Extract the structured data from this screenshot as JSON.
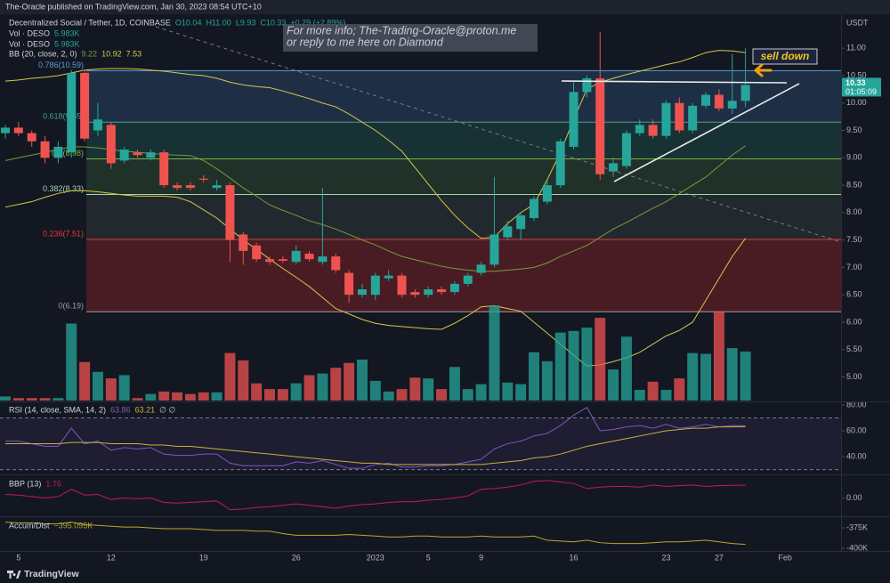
{
  "header": {
    "publisher": "The-Oracle published on TradingView.com, Jan 30, 2023 08:54 UTC+10"
  },
  "footer": {
    "brand": "TradingView"
  },
  "annotations": {
    "info": [
      "For more info; The-Trading-Oracle@proton.me",
      "or reply to me here on Diamond"
    ],
    "callout": "sell down"
  },
  "chart_data": [
    {
      "type": "candlestick",
      "title": "Decentralized Social / Tether, 1D, COINBASE",
      "ohlc_labels": [
        "O10.04",
        "H11.00",
        "L9.93",
        "C10.33",
        "+0.29 (+2.89%)"
      ],
      "unit": "USDT",
      "categories": [
        null,
        "5",
        null,
        null,
        null,
        null,
        null,
        null,
        "12",
        null,
        null,
        null,
        null,
        null,
        null,
        "19",
        null,
        null,
        null,
        null,
        null,
        null,
        "26",
        null,
        null,
        null,
        null,
        null,
        "2023",
        null,
        null,
        null,
        "5",
        null,
        null,
        null,
        "9",
        null,
        null,
        null,
        null,
        null,
        null,
        "16",
        null,
        null,
        null,
        null,
        null,
        null,
        "23",
        null,
        null,
        null,
        "27",
        null,
        null,
        null,
        null,
        "Feb"
      ],
      "open": [
        9.45,
        9.55,
        9.45,
        9.3,
        9.0,
        9.1,
        10.55,
        9.5,
        9.6,
        8.95,
        9.1,
        9.0,
        9.1,
        8.5,
        8.5,
        8.62,
        8.45,
        8.5,
        7.6,
        7.4,
        7.15,
        7.15,
        7.1,
        7.25,
        7.1,
        7.2,
        6.9,
        6.5,
        6.5,
        6.8,
        6.85,
        6.55,
        6.5,
        6.6,
        6.55,
        6.7,
        6.9,
        7.05,
        7.55,
        7.7,
        7.9,
        8.2,
        8.5,
        9.2,
        10.2,
        10.45,
        8.75,
        8.85,
        9.45,
        9.6,
        9.4,
        10.0,
        9.5,
        9.95,
        10.15,
        9.9,
        10.04,
        null,
        null,
        null
      ],
      "high": [
        9.6,
        9.65,
        9.5,
        9.4,
        9.3,
        10.6,
        10.6,
        10.0,
        9.65,
        9.2,
        9.15,
        9.15,
        9.15,
        8.55,
        8.55,
        8.68,
        8.6,
        8.55,
        7.65,
        7.45,
        7.2,
        7.2,
        7.4,
        7.3,
        8.45,
        7.25,
        6.95,
        6.7,
        6.9,
        6.95,
        6.9,
        6.6,
        6.65,
        6.65,
        6.75,
        6.9,
        7.1,
        8.65,
        7.85,
        8.0,
        8.3,
        8.6,
        9.35,
        10.4,
        10.5,
        11.3,
        9.0,
        9.5,
        9.7,
        9.7,
        10.05,
        10.1,
        10.0,
        10.2,
        10.25,
        10.9,
        11.0,
        null,
        null,
        null
      ],
      "low": [
        9.35,
        9.4,
        9.2,
        8.9,
        8.9,
        9.0,
        9.3,
        9.4,
        8.8,
        8.9,
        9.0,
        8.95,
        8.45,
        8.4,
        8.4,
        8.55,
        8.4,
        7.1,
        7.05,
        7.1,
        7.05,
        7.08,
        7.05,
        7.1,
        7.05,
        6.9,
        6.35,
        6.45,
        6.4,
        6.75,
        6.45,
        6.45,
        6.45,
        6.5,
        6.5,
        6.65,
        6.85,
        7.0,
        7.5,
        7.5,
        7.85,
        8.15,
        8.45,
        9.15,
        10.1,
        8.6,
        8.65,
        8.8,
        9.4,
        9.35,
        9.35,
        9.45,
        9.45,
        9.9,
        9.85,
        9.8,
        9.93,
        null,
        null,
        null
      ],
      "close": [
        9.55,
        9.45,
        9.3,
        9.0,
        9.2,
        10.55,
        9.35,
        9.7,
        8.9,
        9.15,
        9.05,
        9.1,
        8.5,
        8.45,
        8.45,
        8.6,
        8.5,
        7.5,
        7.3,
        7.15,
        7.1,
        7.12,
        7.3,
        7.15,
        7.2,
        6.95,
        6.5,
        6.6,
        6.85,
        6.85,
        6.5,
        6.5,
        6.6,
        6.55,
        6.7,
        6.85,
        7.05,
        7.6,
        7.75,
        7.95,
        8.25,
        8.5,
        9.3,
        10.2,
        10.45,
        8.7,
        8.9,
        9.45,
        9.6,
        9.4,
        10.0,
        9.5,
        9.95,
        10.15,
        9.9,
        10.04,
        10.33,
        null,
        null,
        null
      ],
      "up_color": "#26a69a",
      "down_color": "#ef5350",
      "volume": {
        "name": "Vol · DESO",
        "value_label": "5.983K",
        "values": [
          500,
          300,
          300,
          300,
          300,
          9400,
          4700,
          3500,
          2700,
          3100,
          300,
          800,
          1100,
          1000,
          800,
          1000,
          1000,
          5800,
          4900,
          2100,
          1400,
          1400,
          2100,
          3100,
          3300,
          4000,
          4600,
          5000,
          2400,
          1100,
          1400,
          2800,
          2700,
          1400,
          4100,
          1400,
          2000,
          11600,
          2200,
          2000,
          5900,
          4800,
          8300,
          8500,
          8900,
          10100,
          3800,
          7800,
          1300,
          2300,
          1300,
          2700,
          5800,
          5700,
          10900,
          6400,
          5983,
          null,
          null,
          null
        ]
      },
      "extra_legends": [
        {
          "name": "Vol · DESO",
          "value_label": "5.983K"
        }
      ],
      "bb": {
        "title": "BB (20, close, 2, 0)",
        "basis": {
          "color": "#7a9a3a",
          "value_label": "9.22",
          "values": [
            8.95,
            9.0,
            9.05,
            9.1,
            9.15,
            9.2,
            9.2,
            9.18,
            9.15,
            9.12,
            9.1,
            9.08,
            9.06,
            9.05,
            9.04,
            8.95,
            8.8,
            8.63,
            8.45,
            8.3,
            8.14,
            8.04,
            7.95,
            7.85,
            7.78,
            7.7,
            7.6,
            7.5,
            7.41,
            7.3,
            7.2,
            7.14,
            7.08,
            7.02,
            6.98,
            6.95,
            6.93,
            6.93,
            6.95,
            6.97,
            7.0,
            7.08,
            7.2,
            7.3,
            7.4,
            7.55,
            7.7,
            7.82,
            7.95,
            8.08,
            8.2,
            8.35,
            8.5,
            8.65,
            8.85,
            9.05,
            9.22,
            null,
            null,
            null
          ]
        },
        "upper": {
          "color": "#d4c84a",
          "value_label": "10.92",
          "values": [
            10.4,
            10.42,
            10.45,
            10.47,
            10.5,
            10.55,
            10.6,
            10.62,
            10.63,
            10.63,
            10.62,
            10.6,
            10.58,
            10.55,
            10.52,
            10.5,
            10.45,
            10.38,
            10.33,
            10.3,
            10.28,
            10.22,
            10.15,
            10.08,
            10.0,
            9.93,
            9.8,
            9.65,
            9.5,
            9.32,
            9.12,
            8.82,
            8.52,
            8.22,
            7.95,
            7.72,
            7.53,
            7.55,
            7.8,
            8.0,
            8.15,
            8.6,
            9.1,
            9.7,
            10.25,
            10.38,
            10.45,
            10.52,
            10.58,
            10.64,
            10.7,
            10.75,
            10.83,
            10.92,
            10.96,
            10.95,
            10.92,
            null,
            null,
            null
          ]
        },
        "lower": {
          "color": "#d4c84a",
          "value_label": "7.53",
          "values": [
            8.1,
            8.15,
            8.2,
            8.28,
            8.35,
            8.4,
            8.4,
            8.38,
            8.35,
            8.32,
            8.3,
            8.3,
            8.3,
            8.28,
            8.2,
            8.05,
            7.9,
            7.7,
            7.5,
            7.33,
            7.15,
            6.98,
            6.82,
            6.65,
            6.45,
            6.25,
            6.15,
            6.05,
            5.98,
            5.94,
            5.92,
            5.9,
            5.88,
            5.87,
            5.98,
            6.12,
            6.28,
            6.3,
            6.25,
            6.2,
            6.0,
            5.8,
            5.6,
            5.4,
            5.2,
            5.22,
            5.28,
            5.35,
            5.45,
            5.6,
            5.75,
            5.85,
            6.0,
            6.4,
            6.8,
            7.2,
            7.53,
            null,
            null,
            null
          ]
        }
      },
      "fib_levels": [
        {
          "value": 10.59,
          "label": "0.786(10.59)",
          "color": "#5b9bd5",
          "fill": "rgba(60,110,160,0.28)"
        },
        {
          "value": 9.65,
          "label": "0.618(9.65)",
          "color": "#4a9f8f",
          "fill": "rgba(40,120,105,0.28)"
        },
        {
          "value": 8.98,
          "label": "0.5(8.98)",
          "color": "#7cb342",
          "fill": "rgba(70,120,60,0.28)"
        },
        {
          "value": 8.33,
          "label": "0.382(8.33)",
          "color": "#a5d6a7",
          "fill": "rgba(90,110,90,0.22)"
        },
        {
          "value": 7.51,
          "label": "0.236(7.51)",
          "color": "#e53935",
          "fill": "rgba(140,35,40,0.45)"
        },
        {
          "value": 6.19,
          "label": "0(6.19)",
          "color": "#9e9e9e"
        }
      ],
      "ylim": [
        4.57,
        11.62
      ],
      "yticks": [
        {
          "value": 11,
          "label": "11.00"
        },
        {
          "value": 10.5,
          "label": "10.50"
        },
        {
          "value": 10,
          "label": "10.00"
        },
        {
          "value": 9.5,
          "label": "9.50"
        },
        {
          "value": 9,
          "label": "9.00"
        },
        {
          "value": 8.5,
          "label": "8.50"
        },
        {
          "value": 8,
          "label": "8.00"
        },
        {
          "value": 7.5,
          "label": "7.50"
        },
        {
          "value": 7,
          "label": "7.00"
        },
        {
          "value": 6.5,
          "label": "6.50"
        },
        {
          "value": 6,
          "label": "6.00"
        },
        {
          "value": 5.5,
          "label": "5.50"
        },
        {
          "value": 5,
          "label": "5.00"
        }
      ],
      "last_price": {
        "value": 10.33,
        "label": "10.33"
      },
      "countdown": "01:05:09",
      "grid": false
    },
    {
      "type": "line",
      "title": "RSI (14, close, SMA, 14, 2)",
      "na_label": "∅ ∅",
      "series": [
        {
          "color": "#7e57c2",
          "value_label": "63.86",
          "values": [
            52,
            52,
            50,
            48,
            48,
            62,
            50,
            52,
            45,
            47,
            46,
            47,
            42,
            41,
            41,
            42,
            42,
            35,
            33,
            33,
            33,
            33,
            36,
            35,
            37,
            34,
            31,
            31,
            34,
            35,
            32,
            32,
            33,
            33,
            34,
            36,
            38,
            46,
            50,
            52,
            56,
            58,
            64,
            72,
            78,
            60,
            61,
            63,
            64,
            62,
            65,
            62,
            63,
            65,
            63,
            64,
            63.86,
            null,
            null,
            null
          ]
        },
        {
          "color": "#c9b33a",
          "value_label": "63.21",
          "values": [
            50,
            50,
            50,
            50,
            50,
            51,
            51,
            51,
            50,
            50,
            50,
            49,
            49,
            48,
            48,
            47,
            46,
            45,
            44,
            43,
            42,
            41,
            40,
            39,
            38,
            37,
            36,
            35,
            35,
            34,
            34,
            34,
            34,
            34,
            34,
            34,
            34,
            35,
            36,
            37,
            39,
            40,
            42,
            45,
            48,
            50,
            52,
            54,
            56,
            58,
            60,
            61,
            62,
            62,
            63,
            63,
            63.21,
            null,
            null,
            null
          ]
        }
      ],
      "bands": [
        30,
        70
      ],
      "ylim": [
        27,
        82
      ],
      "yticks": [
        {
          "value": 80,
          "label": "80.00"
        },
        {
          "value": 60,
          "label": "60.00"
        },
        {
          "value": 40,
          "label": "40.00"
        }
      ]
    },
    {
      "type": "line",
      "title": "BBP (13)",
      "series": [
        {
          "color": "#c2185b",
          "value_label": "1.76",
          "values": [
            0.5,
            0.4,
            0.2,
            0.0,
            0.2,
            1.2,
            0.4,
            0.5,
            -0.2,
            0.0,
            -0.1,
            0.0,
            -0.6,
            -0.7,
            -0.6,
            -0.5,
            -0.4,
            -1.6,
            -1.5,
            -1.3,
            -1.2,
            -1.0,
            -0.8,
            -1.0,
            -1.2,
            -1.4,
            -1.1,
            -0.9,
            -0.8,
            -0.6,
            -0.5,
            -0.5,
            -0.3,
            -0.2,
            0.0,
            0.3,
            1.2,
            1.3,
            1.5,
            1.8,
            2.3,
            2.4,
            2.2,
            2.0,
            1.3,
            1.5,
            1.6,
            1.6,
            1.5,
            1.8,
            1.6,
            1.7,
            1.8,
            1.6,
            1.7,
            1.75,
            1.76,
            null,
            null,
            null
          ]
        }
      ],
      "ylim": [
        -2.5,
        3
      ],
      "yticks": [
        {
          "value": 0,
          "label": "0.00"
        }
      ]
    },
    {
      "type": "line",
      "title": "Accum/Dist",
      "series": [
        {
          "color": "#b8a830",
          "value_label": "−395.095K",
          "values": [
            -368000,
            -369000,
            -369000,
            -370000,
            -370000,
            -368000,
            -371000,
            -372000,
            -373000,
            -374000,
            -374000,
            -375000,
            -376000,
            -376000,
            -376000,
            -377000,
            -378000,
            -378000,
            -378000,
            -379000,
            -379000,
            -382000,
            -384000,
            -384000,
            -384000,
            -384000,
            -383000,
            -384000,
            -385000,
            -386000,
            -386000,
            -385000,
            -385000,
            -386000,
            -386000,
            -386000,
            -385000,
            -386000,
            -386000,
            -386000,
            -385000,
            -390000,
            -391000,
            -392000,
            -390000,
            -393000,
            -394000,
            -394000,
            -394000,
            -393000,
            -392000,
            -392000,
            -391000,
            -390000,
            -392000,
            -394000,
            -395095,
            null,
            null,
            null
          ]
        }
      ],
      "ylim": [
        -402000,
        -363000
      ],
      "yticks": [
        {
          "value": -375000,
          "label": "-375K"
        },
        {
          "value": -400000,
          "label": "-400K"
        }
      ]
    }
  ]
}
